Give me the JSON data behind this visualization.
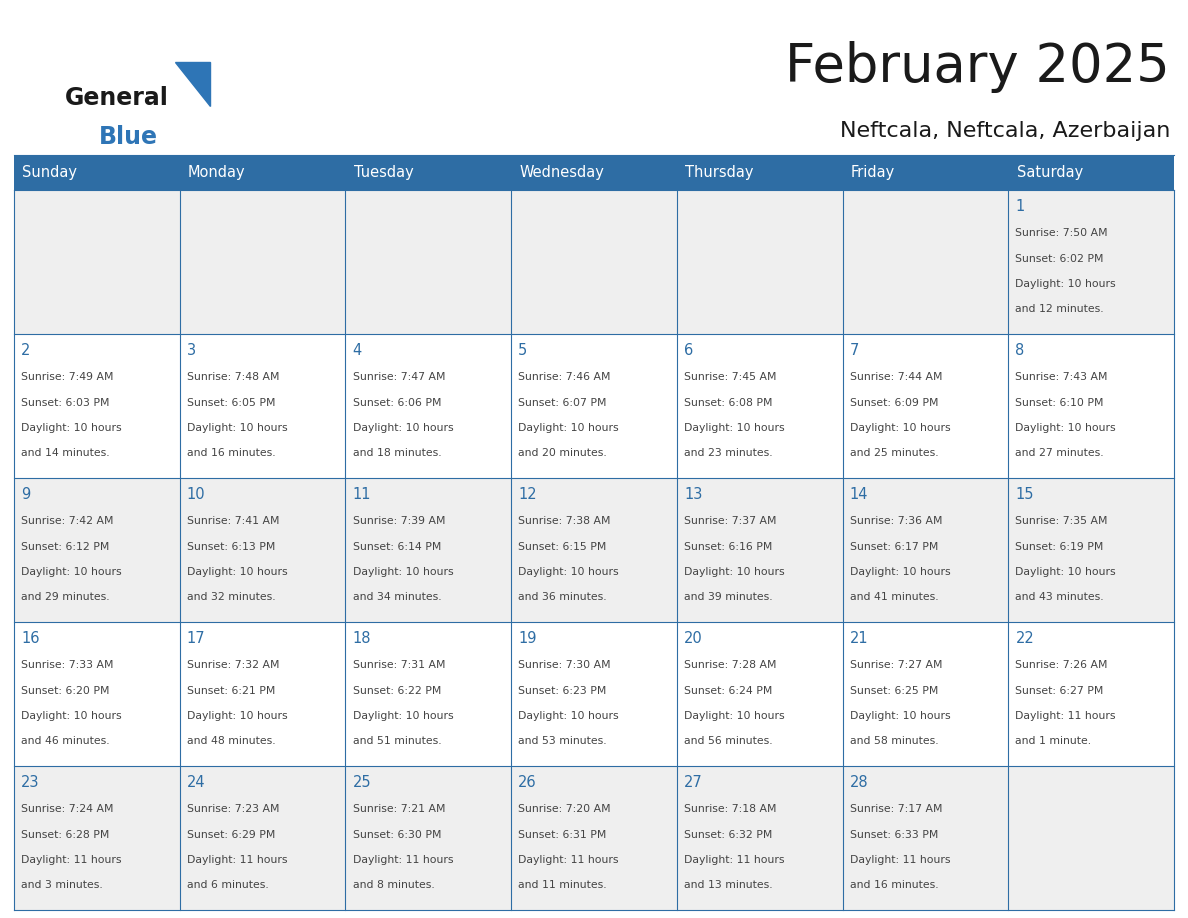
{
  "title": "February 2025",
  "subtitle": "Neftcala, Neftcala, Azerbaijan",
  "days_of_week": [
    "Sunday",
    "Monday",
    "Tuesday",
    "Wednesday",
    "Thursday",
    "Friday",
    "Saturday"
  ],
  "header_bg": "#2E6DA4",
  "header_text": "#FFFFFF",
  "cell_bg_light": "#EFEFEF",
  "cell_bg_white": "#FFFFFF",
  "border_color": "#2E6DA4",
  "day_number_color": "#2E6DA4",
  "text_color": "#444444",
  "title_color": "#1a1a1a",
  "logo_general_color": "#1a1a1a",
  "logo_blue_color": "#2E75B6",
  "calendar_data": [
    {
      "day": 1,
      "row": 0,
      "col": 6,
      "sunrise": "7:50 AM",
      "sunset": "6:02 PM",
      "daylight": "10 hours and 12 minutes."
    },
    {
      "day": 2,
      "row": 1,
      "col": 0,
      "sunrise": "7:49 AM",
      "sunset": "6:03 PM",
      "daylight": "10 hours and 14 minutes."
    },
    {
      "day": 3,
      "row": 1,
      "col": 1,
      "sunrise": "7:48 AM",
      "sunset": "6:05 PM",
      "daylight": "10 hours and 16 minutes."
    },
    {
      "day": 4,
      "row": 1,
      "col": 2,
      "sunrise": "7:47 AM",
      "sunset": "6:06 PM",
      "daylight": "10 hours and 18 minutes."
    },
    {
      "day": 5,
      "row": 1,
      "col": 3,
      "sunrise": "7:46 AM",
      "sunset": "6:07 PM",
      "daylight": "10 hours and 20 minutes."
    },
    {
      "day": 6,
      "row": 1,
      "col": 4,
      "sunrise": "7:45 AM",
      "sunset": "6:08 PM",
      "daylight": "10 hours and 23 minutes."
    },
    {
      "day": 7,
      "row": 1,
      "col": 5,
      "sunrise": "7:44 AM",
      "sunset": "6:09 PM",
      "daylight": "10 hours and 25 minutes."
    },
    {
      "day": 8,
      "row": 1,
      "col": 6,
      "sunrise": "7:43 AM",
      "sunset": "6:10 PM",
      "daylight": "10 hours and 27 minutes."
    },
    {
      "day": 9,
      "row": 2,
      "col": 0,
      "sunrise": "7:42 AM",
      "sunset": "6:12 PM",
      "daylight": "10 hours and 29 minutes."
    },
    {
      "day": 10,
      "row": 2,
      "col": 1,
      "sunrise": "7:41 AM",
      "sunset": "6:13 PM",
      "daylight": "10 hours and 32 minutes."
    },
    {
      "day": 11,
      "row": 2,
      "col": 2,
      "sunrise": "7:39 AM",
      "sunset": "6:14 PM",
      "daylight": "10 hours and 34 minutes."
    },
    {
      "day": 12,
      "row": 2,
      "col": 3,
      "sunrise": "7:38 AM",
      "sunset": "6:15 PM",
      "daylight": "10 hours and 36 minutes."
    },
    {
      "day": 13,
      "row": 2,
      "col": 4,
      "sunrise": "7:37 AM",
      "sunset": "6:16 PM",
      "daylight": "10 hours and 39 minutes."
    },
    {
      "day": 14,
      "row": 2,
      "col": 5,
      "sunrise": "7:36 AM",
      "sunset": "6:17 PM",
      "daylight": "10 hours and 41 minutes."
    },
    {
      "day": 15,
      "row": 2,
      "col": 6,
      "sunrise": "7:35 AM",
      "sunset": "6:19 PM",
      "daylight": "10 hours and 43 minutes."
    },
    {
      "day": 16,
      "row": 3,
      "col": 0,
      "sunrise": "7:33 AM",
      "sunset": "6:20 PM",
      "daylight": "10 hours and 46 minutes."
    },
    {
      "day": 17,
      "row": 3,
      "col": 1,
      "sunrise": "7:32 AM",
      "sunset": "6:21 PM",
      "daylight": "10 hours and 48 minutes."
    },
    {
      "day": 18,
      "row": 3,
      "col": 2,
      "sunrise": "7:31 AM",
      "sunset": "6:22 PM",
      "daylight": "10 hours and 51 minutes."
    },
    {
      "day": 19,
      "row": 3,
      "col": 3,
      "sunrise": "7:30 AM",
      "sunset": "6:23 PM",
      "daylight": "10 hours and 53 minutes."
    },
    {
      "day": 20,
      "row": 3,
      "col": 4,
      "sunrise": "7:28 AM",
      "sunset": "6:24 PM",
      "daylight": "10 hours and 56 minutes."
    },
    {
      "day": 21,
      "row": 3,
      "col": 5,
      "sunrise": "7:27 AM",
      "sunset": "6:25 PM",
      "daylight": "10 hours and 58 minutes."
    },
    {
      "day": 22,
      "row": 3,
      "col": 6,
      "sunrise": "7:26 AM",
      "sunset": "6:27 PM",
      "daylight": "11 hours and 1 minute."
    },
    {
      "day": 23,
      "row": 4,
      "col": 0,
      "sunrise": "7:24 AM",
      "sunset": "6:28 PM",
      "daylight": "11 hours and 3 minutes."
    },
    {
      "day": 24,
      "row": 4,
      "col": 1,
      "sunrise": "7:23 AM",
      "sunset": "6:29 PM",
      "daylight": "11 hours and 6 minutes."
    },
    {
      "day": 25,
      "row": 4,
      "col": 2,
      "sunrise": "7:21 AM",
      "sunset": "6:30 PM",
      "daylight": "11 hours and 8 minutes."
    },
    {
      "day": 26,
      "row": 4,
      "col": 3,
      "sunrise": "7:20 AM",
      "sunset": "6:31 PM",
      "daylight": "11 hours and 11 minutes."
    },
    {
      "day": 27,
      "row": 4,
      "col": 4,
      "sunrise": "7:18 AM",
      "sunset": "6:32 PM",
      "daylight": "11 hours and 13 minutes."
    },
    {
      "day": 28,
      "row": 4,
      "col": 5,
      "sunrise": "7:17 AM",
      "sunset": "6:33 PM",
      "daylight": "11 hours and 16 minutes."
    }
  ],
  "figwidth": 11.88,
  "figheight": 9.18,
  "dpi": 100
}
